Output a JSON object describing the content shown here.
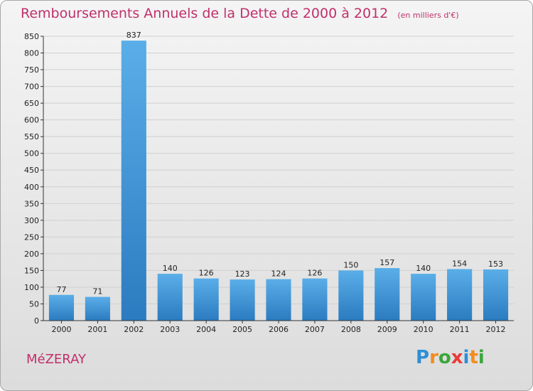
{
  "header": {
    "title": "Remboursements Annuels de la Dette de 2000 à 2012",
    "subtitle": "(en milliers d'€)"
  },
  "footer": {
    "commune": "MéZERAY",
    "logo_text": "Proxiti",
    "logo_letters": [
      {
        "char": "P",
        "color": "#2d8fd5"
      },
      {
        "char": "r",
        "color": "#f28c1e"
      },
      {
        "char": "o",
        "color": "#3aa63a"
      },
      {
        "char": "x",
        "color": "#e83a3a"
      },
      {
        "char": "i",
        "color": "#2d8fd5"
      },
      {
        "char": "t",
        "color": "#f28c1e"
      },
      {
        "char": "i",
        "color": "#3aa63a"
      }
    ]
  },
  "colors": {
    "bar_light": "#5aaee8",
    "bar_dark": "#2b7bc0",
    "title": "#c0306a"
  },
  "chart_data": {
    "type": "bar",
    "title": "Remboursements Annuels de la Dette de 2000 à 2012",
    "subtitle": "(en milliers d'€)",
    "xlabel": "",
    "ylabel": "",
    "categories": [
      "2000",
      "2001",
      "2002",
      "2003",
      "2004",
      "2005",
      "2006",
      "2007",
      "2008",
      "2009",
      "2010",
      "2011",
      "2012"
    ],
    "values": [
      77,
      71,
      837,
      140,
      126,
      123,
      124,
      126,
      150,
      157,
      140,
      154,
      153
    ],
    "ylim": [
      0,
      850
    ],
    "yticks": [
      0,
      50,
      100,
      150,
      200,
      250,
      300,
      350,
      400,
      450,
      500,
      550,
      600,
      650,
      700,
      750,
      800,
      850
    ],
    "grid": true
  }
}
